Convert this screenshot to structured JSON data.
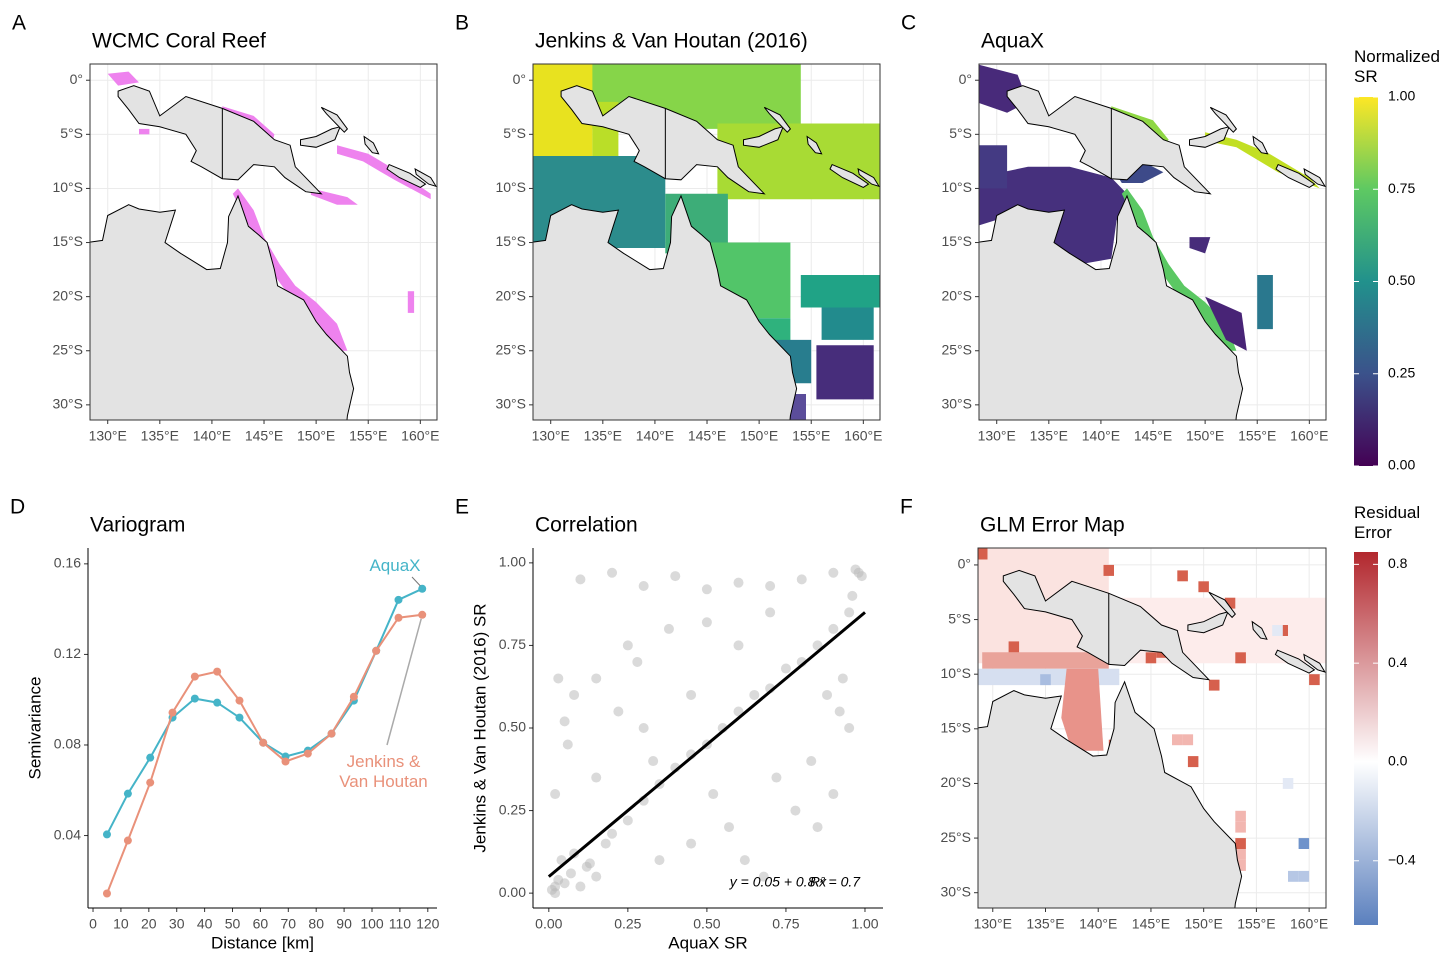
{
  "chart_data": [
    {
      "type": "map",
      "panel": "A",
      "title": "WCMC Coral Reef",
      "xlim": [
        128.3,
        161.6
      ],
      "ylim": [
        -31.4,
        1.5
      ],
      "xticks": [
        {
          "value": 130,
          "label": "130°E"
        },
        {
          "value": 135,
          "label": "135°E"
        },
        {
          "value": 140,
          "label": "140°E"
        },
        {
          "value": 145,
          "label": "145°E"
        },
        {
          "value": 150,
          "label": "150°E"
        },
        {
          "value": 155,
          "label": "155°E"
        },
        {
          "value": 160,
          "label": "160°E"
        }
      ],
      "yticks": [
        {
          "value": 0,
          "label": "0°"
        },
        {
          "value": -5,
          "label": "5°S"
        },
        {
          "value": -10,
          "label": "10°S"
        },
        {
          "value": -15,
          "label": "15°S"
        },
        {
          "value": -20,
          "label": "20°S"
        },
        {
          "value": -25,
          "label": "25°S"
        },
        {
          "value": -30,
          "label": "30°S"
        }
      ],
      "grid": true
    },
    {
      "type": "map",
      "panel": "B",
      "title": "Jenkins & Van Houtan (2016)",
      "xlim": [
        128.3,
        161.6
      ],
      "ylim": [
        -31.4,
        1.5
      ],
      "xticks": [
        {
          "value": 130,
          "label": "130°E"
        },
        {
          "value": 135,
          "label": "135°E"
        },
        {
          "value": 140,
          "label": "140°E"
        },
        {
          "value": 145,
          "label": "145°E"
        },
        {
          "value": 150,
          "label": "150°E"
        },
        {
          "value": 155,
          "label": "155°E"
        },
        {
          "value": 160,
          "label": "160°E"
        }
      ],
      "yticks": [
        {
          "value": 0,
          "label": "0°"
        },
        {
          "value": -5,
          "label": "5°S"
        },
        {
          "value": -10,
          "label": "10°S"
        },
        {
          "value": -15,
          "label": "15°S"
        },
        {
          "value": -20,
          "label": "20°S"
        },
        {
          "value": -25,
          "label": "25°S"
        },
        {
          "value": -30,
          "label": "30°S"
        }
      ],
      "grid": true
    },
    {
      "type": "map",
      "panel": "C",
      "title": "AquaX",
      "xlim": [
        128.3,
        161.6
      ],
      "ylim": [
        -31.4,
        1.5
      ],
      "xticks": [
        {
          "value": 130,
          "label": "130°E"
        },
        {
          "value": 135,
          "label": "135°E"
        },
        {
          "value": 140,
          "label": "140°E"
        },
        {
          "value": 145,
          "label": "145°E"
        },
        {
          "value": 150,
          "label": "150°E"
        },
        {
          "value": 155,
          "label": "155°E"
        },
        {
          "value": 160,
          "label": "160°E"
        }
      ],
      "yticks": [
        {
          "value": 0,
          "label": "0°"
        },
        {
          "value": -5,
          "label": "5°S"
        },
        {
          "value": -10,
          "label": "10°S"
        },
        {
          "value": -15,
          "label": "15°S"
        },
        {
          "value": -20,
          "label": "20°S"
        },
        {
          "value": -25,
          "label": "25°S"
        },
        {
          "value": -30,
          "label": "30°S"
        }
      ],
      "grid": true,
      "colorbar": {
        "title": "Normalized SR",
        "lim": [
          0,
          1
        ],
        "ticks": [
          {
            "value": 1,
            "label": "1.00"
          },
          0.75,
          {
            "value": 0.5,
            "label": "0.50"
          },
          0.25,
          {
            "value": 0,
            "label": "0.00"
          }
        ],
        "colors": [
          "#440154",
          "#3b528b",
          "#21918c",
          "#5ec962",
          "#fde725"
        ]
      }
    },
    {
      "type": "line",
      "panel": "D",
      "title": "Variogram",
      "x_label": "Distance [km]",
      "y_label": "Semivariance",
      "x": [
        5,
        12.5,
        20.5,
        28.5,
        36.5,
        44.5,
        52.5,
        61,
        69,
        77,
        85.5,
        93.5,
        101.5,
        109.5,
        118
      ],
      "series": [
        {
          "name": "AquaX",
          "color": "#45b4c8",
          "values": [
            0.0405,
            0.0585,
            0.0744,
            0.0921,
            0.1005,
            0.0987,
            0.0921,
            0.081,
            0.0749,
            0.0775,
            0.085,
            0.0996,
            0.1216,
            0.1441,
            0.149
          ]
        },
        {
          "name": "Jenkins & Van Houtan",
          "color": "#e9917a",
          "values": [
            0.0144,
            0.0378,
            0.0634,
            0.0943,
            0.1102,
            0.1124,
            0.0996,
            0.081,
            0.0727,
            0.0762,
            0.085,
            0.1013,
            0.1216,
            0.1362,
            0.1375
          ]
        }
      ],
      "xlim": [
        -1.8,
        123.3
      ],
      "ylim": [
        0.008,
        0.167
      ],
      "xticks": [
        0,
        10,
        20,
        30,
        40,
        50,
        60,
        70,
        80,
        90,
        100,
        110,
        120
      ],
      "yticks": [
        0.04,
        0.08,
        0.12,
        0.16
      ]
    },
    {
      "type": "scatter",
      "panel": "E",
      "title": "Correlation",
      "x_label": "AquaX SR",
      "y_label": "Jenkins & Van Houtan (2016) SR",
      "x": [
        0.01,
        0.02,
        0.03,
        0.05,
        0.07,
        0.1,
        0.12,
        0.15,
        0.02,
        0.04,
        0.08,
        0.13,
        0.18,
        0.2,
        0.25,
        0.3,
        0.35,
        0.4,
        0.45,
        0.5,
        0.55,
        0.6,
        0.65,
        0.7,
        0.75,
        0.8,
        0.85,
        0.9,
        0.95,
        0.98,
        0.1,
        0.2,
        0.3,
        0.4,
        0.5,
        0.6,
        0.7,
        0.8,
        0.9,
        0.97,
        0.99,
        0.96,
        0.93,
        0.92,
        0.95,
        0.03,
        0.05,
        0.08,
        0.02,
        0.06,
        0.15,
        0.22,
        0.28,
        0.33,
        0.38,
        0.45,
        0.52,
        0.57,
        0.62,
        0.68,
        0.72,
        0.78,
        0.83,
        0.88,
        0.45,
        0.25,
        0.6,
        0.35,
        0.15,
        0.85,
        0.9,
        0.7,
        0.5,
        0.3
      ],
      "values": [
        0.01,
        0.02,
        0.04,
        0.03,
        0.06,
        0.02,
        0.08,
        0.05,
        0.0,
        0.1,
        0.12,
        0.09,
        0.15,
        0.18,
        0.22,
        0.28,
        0.33,
        0.38,
        0.42,
        0.45,
        0.5,
        0.55,
        0.6,
        0.62,
        0.68,
        0.7,
        0.75,
        0.8,
        0.85,
        0.97,
        0.95,
        0.97,
        0.93,
        0.96,
        0.92,
        0.94,
        0.93,
        0.95,
        0.97,
        0.98,
        0.96,
        0.9,
        0.65,
        0.55,
        0.5,
        0.65,
        0.52,
        0.6,
        0.3,
        0.45,
        0.65,
        0.55,
        0.7,
        0.4,
        0.8,
        0.15,
        0.3,
        0.2,
        0.1,
        0.05,
        0.35,
        0.25,
        0.4,
        0.6,
        0.6,
        0.75,
        0.75,
        0.1,
        0.35,
        0.2,
        0.3,
        0.85,
        0.82,
        0.5
      ],
      "color": "#b5b5b5",
      "fit": {
        "intercept": 0.05,
        "slope": 0.8,
        "color": "#000000"
      },
      "fit_label": "y = 0.05 + 0.8 x",
      "r2_label": "R² = 0.7",
      "xlim": [
        -0.05,
        1.057
      ],
      "ylim": [
        -0.045,
        1.045
      ],
      "xticks": [
        {
          "value": 0,
          "label": "0.00"
        },
        0.25,
        {
          "value": 0.5,
          "label": "0.50"
        },
        0.75,
        {
          "value": 1,
          "label": "1.00"
        }
      ],
      "yticks": [
        {
          "value": 0,
          "label": "0.00"
        },
        0.25,
        {
          "value": 0.5,
          "label": "0.50"
        },
        0.75,
        {
          "value": 1,
          "label": "1.00"
        }
      ]
    },
    {
      "type": "map",
      "panel": "F",
      "title": "GLM Error Map",
      "xlim": [
        128.6,
        161.6
      ],
      "ylim": [
        -31.4,
        1.55
      ],
      "xticks": [
        {
          "value": 130,
          "label": "130°E"
        },
        {
          "value": 135,
          "label": "135°E"
        },
        {
          "value": 140,
          "label": "140°E"
        },
        {
          "value": 145,
          "label": "145°E"
        },
        {
          "value": 150,
          "label": "150°E"
        },
        {
          "value": 155,
          "label": "155°E"
        },
        {
          "value": 160,
          "label": "160°E"
        }
      ],
      "yticks": [
        {
          "value": 0,
          "label": "0°"
        },
        {
          "value": -5,
          "label": "5°S"
        },
        {
          "value": -10,
          "label": "10°S"
        },
        {
          "value": -15,
          "label": "15°S"
        },
        {
          "value": -20,
          "label": "20°S"
        },
        {
          "value": -25,
          "label": "25°S"
        },
        {
          "value": -30,
          "label": "30°S"
        }
      ],
      "grid": true,
      "colorbar": {
        "title": "Residual Error",
        "lim": [
          -0.66,
          0.85
        ],
        "ticks": [
          0.8,
          0.4,
          {
            "value": 0,
            "label": "0.0"
          },
          {
            "value": -0.4,
            "label": "−0.4"
          }
        ],
        "colors": [
          "#5b80be",
          "#ffffff",
          "#b2272d"
        ]
      }
    }
  ]
}
